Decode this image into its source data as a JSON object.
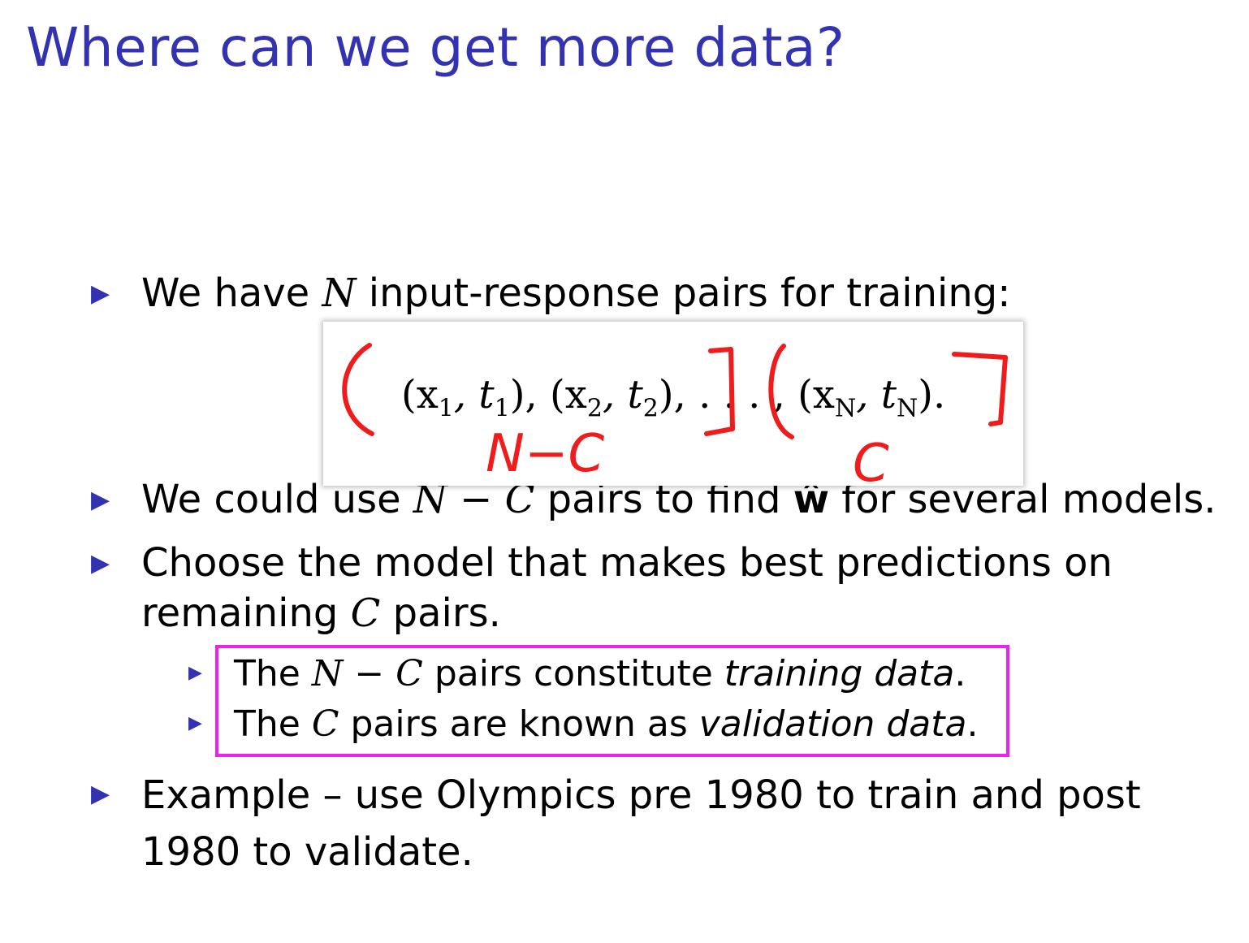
{
  "slide": {
    "title": "Where can we get more data?",
    "bullets": [
      {
        "parts": [
          "We have ",
          "N",
          " input-response pairs for training:"
        ]
      },
      {
        "parts": [
          "We could use ",
          "N − C",
          " pairs to find ",
          "ŵ",
          " for several models."
        ]
      },
      {
        "line1": "Choose the model that makes best predictions on",
        "line2_a": "remaining ",
        "line2_var": "C",
        "line2_b": " pairs."
      },
      {
        "line1": "Example – use Olympics pre 1980 to train and post",
        "line2": "1980 to validate."
      }
    ],
    "sub_bullets": [
      {
        "a": "The ",
        "var": "N − C",
        "b": " pairs constitute ",
        "em": "training data",
        "c": "."
      },
      {
        "a": "The ",
        "var": "C",
        "b": " pairs are known as ",
        "em": "validation data",
        "c": "."
      }
    ],
    "math": {
      "p1": "(x",
      "s1": "1",
      "p2": ", t",
      "s2": "1",
      "p3": "), (x",
      "s3": "2",
      "p4": ", t",
      "s4": "2",
      "p5": "), . . . , (x",
      "s5": "N",
      "p6": ", t",
      "s6": "N",
      "p7": ")."
    },
    "annotations": {
      "left_group": "N−C",
      "right_group": "C"
    },
    "colors": {
      "title": "#3333b2",
      "bullet_marker": "#3333b2",
      "ink_red": "#ee1c1c",
      "highlight_box": "#ee22ee"
    }
  }
}
